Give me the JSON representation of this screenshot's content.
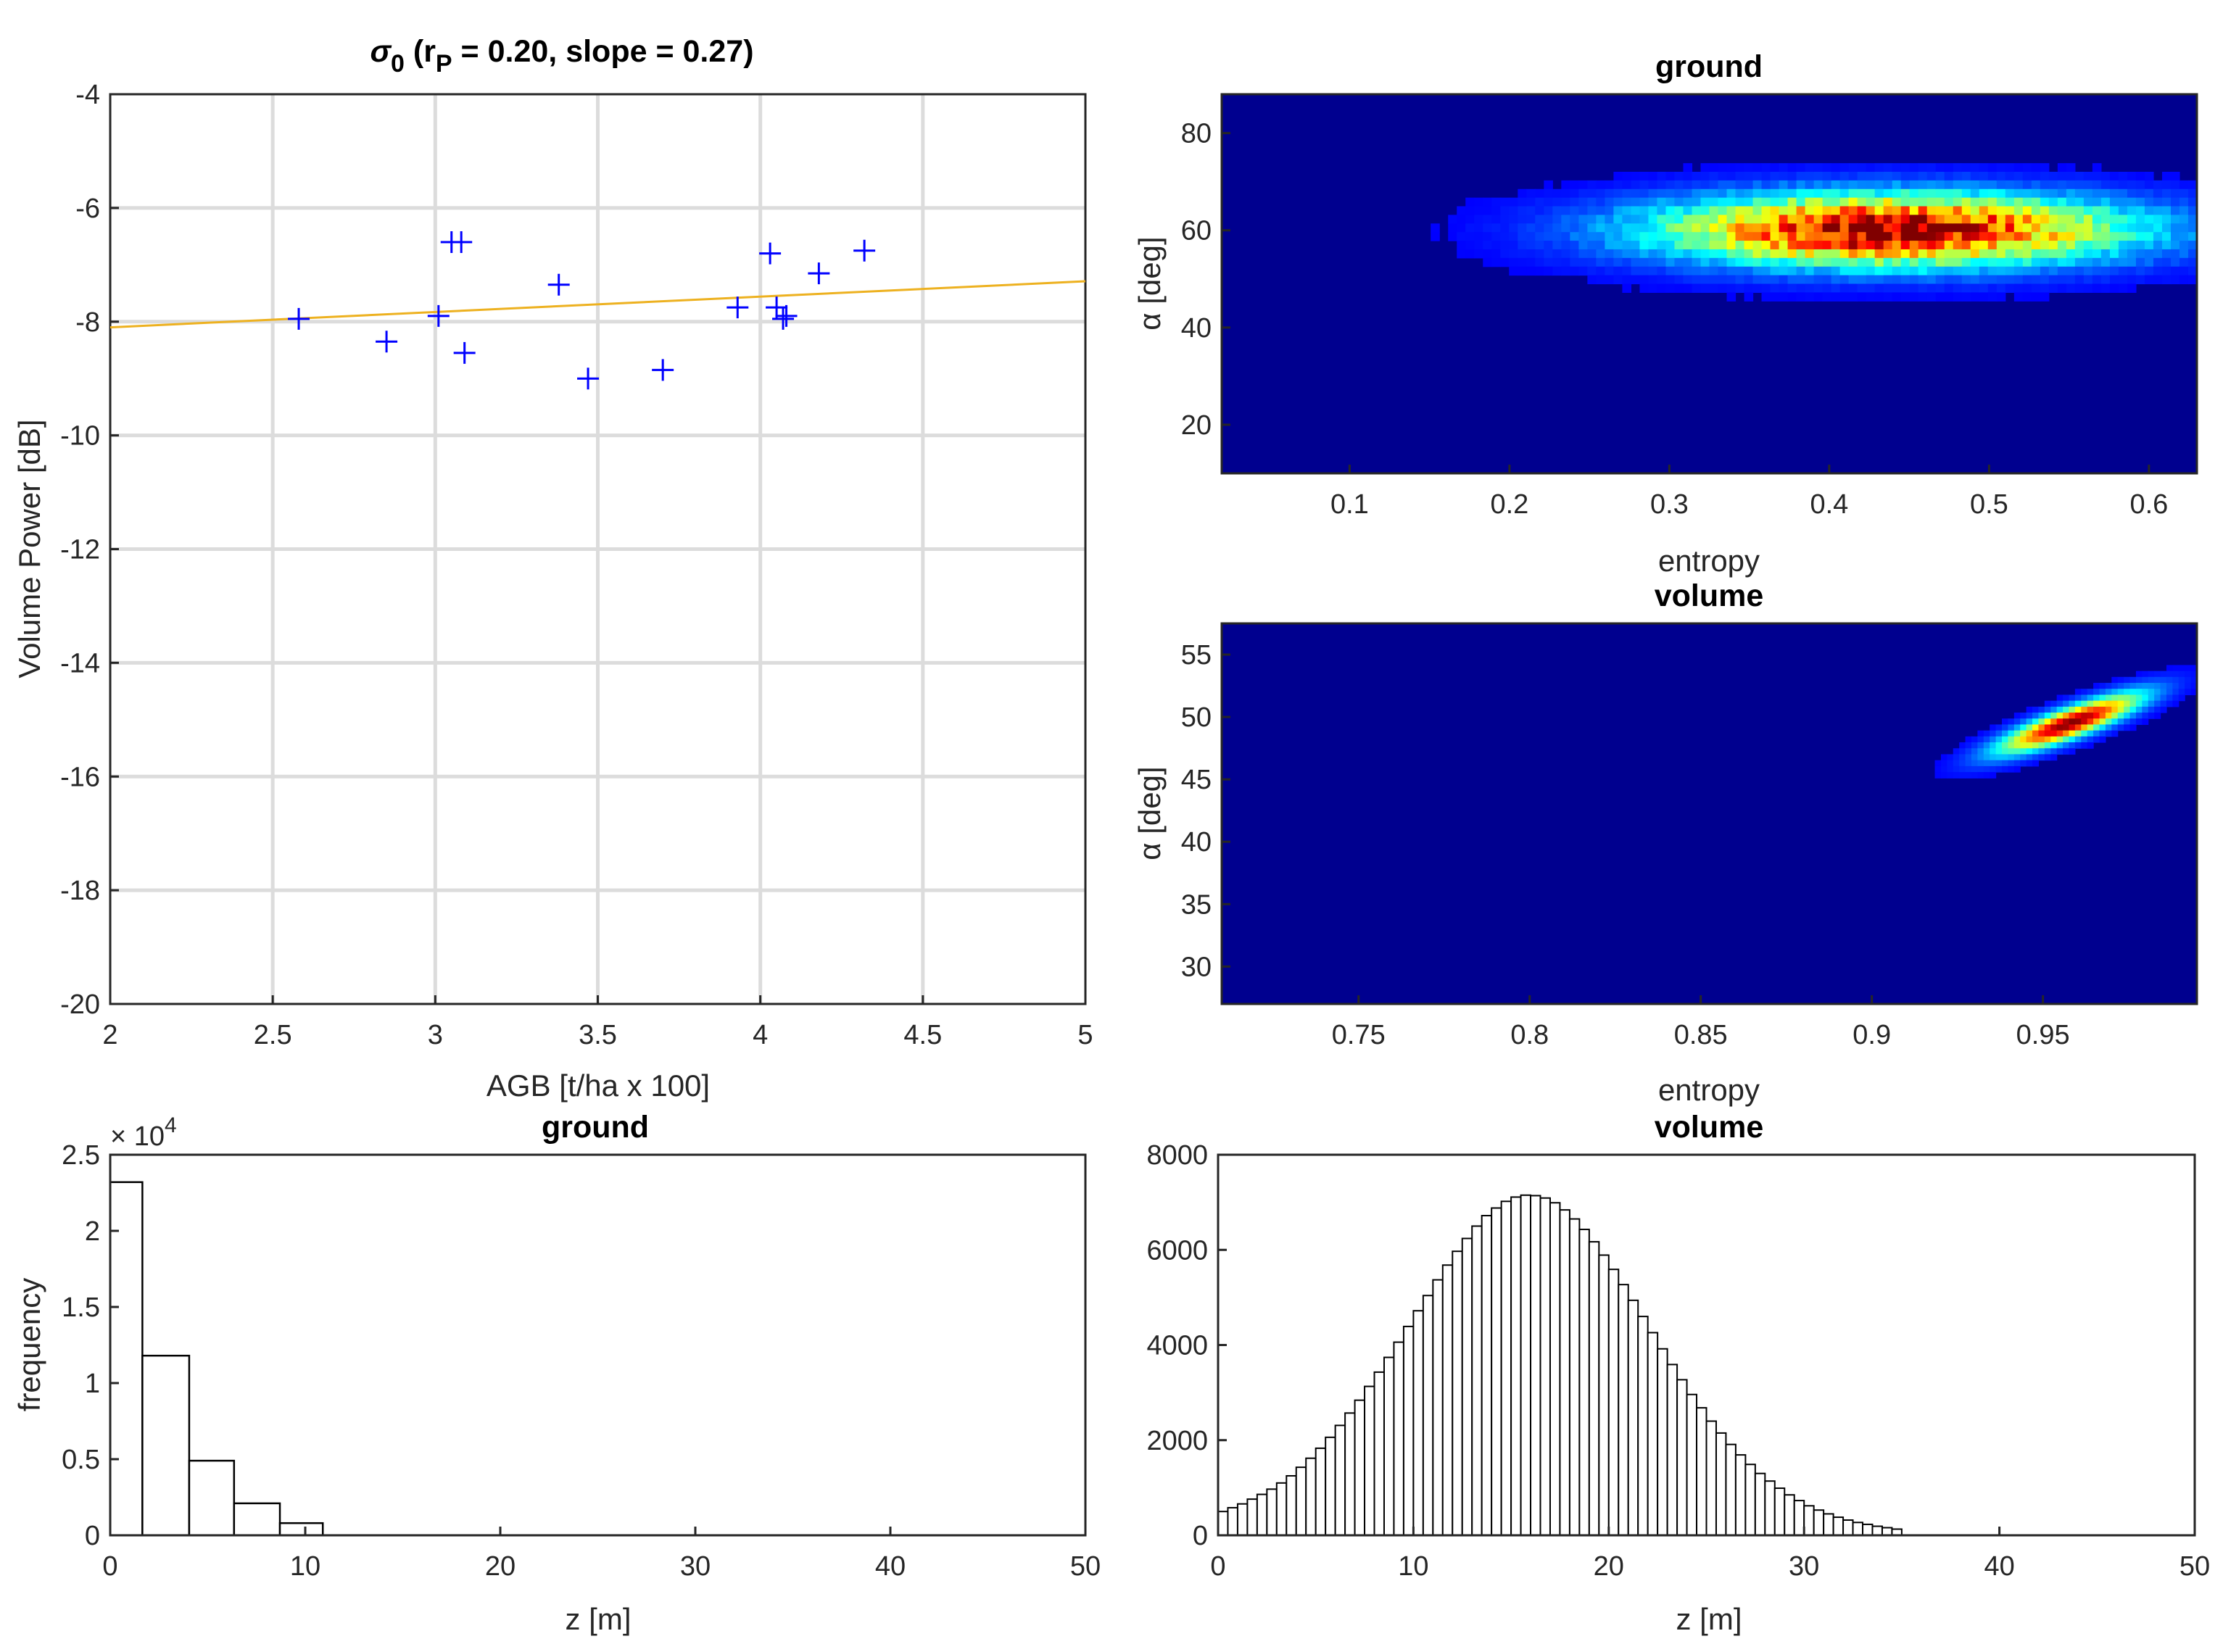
{
  "chart_data": [
    {
      "id": "scatter",
      "type": "scatter",
      "title": "σ0 (rP = 0.20, slope = 0.27)",
      "title_parts": {
        "sigma": "σ",
        "sigma_sub": "0",
        "open": " (r",
        "r_sub": "P",
        "rest": " = 0.20, slope = 0.27)"
      },
      "xlabel": "AGB [t/ha x 100]",
      "ylabel": "Volume Power [dB]",
      "xlim": [
        2,
        5
      ],
      "ylim": [
        -20,
        -4
      ],
      "xticks": [
        2,
        2.5,
        3,
        3.5,
        4,
        4.5,
        5
      ],
      "xtick_labels": [
        "2",
        "2.5",
        "3",
        "3.5",
        "4",
        "4.5",
        "5"
      ],
      "yticks": [
        -20,
        -18,
        -16,
        -14,
        -12,
        -10,
        -8,
        -6,
        -4
      ],
      "ytick_labels": [
        "-20",
        "-18",
        "-16",
        "-14",
        "-12",
        "-10",
        "-8",
        "-6",
        "-4"
      ],
      "grid": true,
      "marker_color": "#0000ff",
      "line_color": "#edb120",
      "points": [
        {
          "x": 2.58,
          "y": -7.95
        },
        {
          "x": 2.85,
          "y": -8.35
        },
        {
          "x": 3.01,
          "y": -7.9
        },
        {
          "x": 3.05,
          "y": -6.6
        },
        {
          "x": 3.08,
          "y": -6.6
        },
        {
          "x": 3.09,
          "y": -8.55
        },
        {
          "x": 3.38,
          "y": -7.35
        },
        {
          "x": 3.47,
          "y": -9.0
        },
        {
          "x": 3.7,
          "y": -8.85
        },
        {
          "x": 3.93,
          "y": -7.75
        },
        {
          "x": 4.03,
          "y": -6.8
        },
        {
          "x": 4.05,
          "y": -7.75
        },
        {
          "x": 4.07,
          "y": -7.95
        },
        {
          "x": 4.08,
          "y": -7.9
        },
        {
          "x": 4.18,
          "y": -7.15
        },
        {
          "x": 4.32,
          "y": -6.75
        }
      ],
      "fit_line": {
        "x": [
          2,
          5
        ],
        "y": [
          -8.1,
          -7.29
        ]
      }
    },
    {
      "id": "heat-ground",
      "type": "heatmap",
      "title": "ground",
      "xlabel": "entropy",
      "ylabel": "α  [deg]",
      "xlim": [
        0.02,
        0.63
      ],
      "ylim": [
        10,
        88
      ],
      "xticks": [
        0.1,
        0.2,
        0.3,
        0.4,
        0.5,
        0.6
      ],
      "xtick_labels": [
        "0.1",
        "0.2",
        "0.3",
        "0.4",
        "0.5",
        "0.6"
      ],
      "yticks": [
        20,
        40,
        60,
        80
      ],
      "ytick_labels": [
        "20",
        "40",
        "60",
        "80"
      ],
      "density": {
        "center_x": 0.44,
        "center_y": 60,
        "sd_x": 0.1,
        "sd_y": 5,
        "rho": 0
      }
    },
    {
      "id": "heat-volume",
      "type": "heatmap",
      "title": "volume",
      "xlabel": "entropy",
      "ylabel": "α  [deg]",
      "xlim": [
        0.71,
        0.995
      ],
      "ylim": [
        27,
        57.5
      ],
      "xticks": [
        0.75,
        0.8,
        0.85,
        0.9,
        0.95
      ],
      "xtick_labels": [
        "0.75",
        "0.8",
        "0.85",
        "0.9",
        "0.95"
      ],
      "yticks": [
        30,
        35,
        40,
        45,
        50,
        55
      ],
      "ytick_labels": [
        "30",
        "35",
        "40",
        "45",
        "50",
        "55"
      ],
      "density": {
        "center_x": 0.958,
        "center_y": 49.5,
        "sd_x": 0.014,
        "sd_y": 1.6,
        "rho": 0.85
      }
    },
    {
      "id": "hist-ground",
      "type": "bar",
      "title": "ground",
      "xlabel": "z [m]",
      "ylabel": "frequency",
      "multiplier": "× 10",
      "multiplier_exp": "4",
      "xlim": [
        0,
        50
      ],
      "ylim": [
        0,
        25000
      ],
      "xticks": [
        0,
        10,
        20,
        30,
        40,
        50
      ],
      "xtick_labels": [
        "0",
        "10",
        "20",
        "30",
        "40",
        "50"
      ],
      "yticks": [
        0,
        5000,
        10000,
        15000,
        20000,
        25000
      ],
      "ytick_labels": [
        "0",
        "0.5",
        "1",
        "1.5",
        "2",
        "2.5"
      ],
      "bin_edges": [
        0,
        1.65,
        4.05,
        6.35,
        8.7,
        10.9
      ],
      "values": [
        23200,
        11800,
        4900,
        2100,
        800
      ]
    },
    {
      "id": "hist-volume",
      "type": "bar",
      "title": "volume",
      "xlabel": "z [m]",
      "ylabel": "",
      "xlim": [
        0,
        50
      ],
      "ylim": [
        0,
        8000
      ],
      "xticks": [
        0,
        10,
        20,
        30,
        40,
        50
      ],
      "xtick_labels": [
        "0",
        "10",
        "20",
        "30",
        "40",
        "50"
      ],
      "yticks": [
        0,
        2000,
        4000,
        6000,
        8000
      ],
      "ytick_labels": [
        "0",
        "2000",
        "4000",
        "6000",
        "8000"
      ],
      "bin_start": 0,
      "bin_width": 0.5,
      "values": [
        500,
        580,
        660,
        760,
        860,
        970,
        1100,
        1250,
        1430,
        1620,
        1830,
        2060,
        2310,
        2570,
        2840,
        3130,
        3430,
        3740,
        4060,
        4390,
        4720,
        5040,
        5370,
        5680,
        5970,
        6240,
        6500,
        6720,
        6880,
        7020,
        7110,
        7150,
        7140,
        7090,
        6990,
        6840,
        6650,
        6430,
        6170,
        5890,
        5590,
        5270,
        4940,
        4600,
        4260,
        3920,
        3590,
        3270,
        2960,
        2680,
        2400,
        2150,
        1910,
        1690,
        1490,
        1300,
        1140,
        990,
        850,
        730,
        620,
        530,
        450,
        380,
        320,
        270,
        230,
        190,
        160,
        130
      ]
    }
  ]
}
